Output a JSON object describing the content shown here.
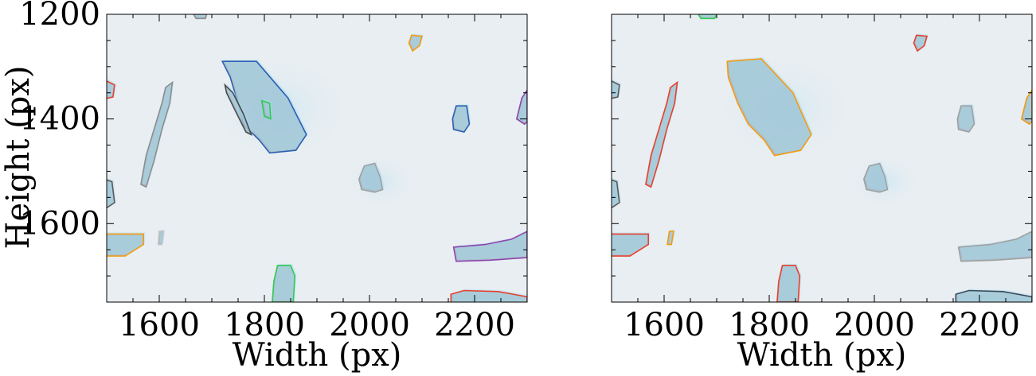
{
  "chart_data": [
    {
      "type": "image",
      "xlabel": "Width (px)",
      "ylabel": "Height (px)",
      "xlim": [
        1500,
        2300
      ],
      "ylim": [
        1750,
        1200
      ],
      "xticks": [
        1600,
        1800,
        2000,
        2200
      ],
      "yticks": [
        1200,
        1400,
        1600
      ],
      "background": "#e8eef2",
      "particles": [
        {
          "id": "p1",
          "outline": "#e8402c",
          "pts": [
            [
              1495,
              1325
            ],
            [
              1515,
              1335
            ],
            [
              1512,
              1358
            ],
            [
              1495,
              1362
            ]
          ]
        },
        {
          "id": "p2",
          "outline": "#8d8d8d",
          "pts": [
            [
              1625,
              1330
            ],
            [
              1620,
              1370
            ],
            [
              1605,
              1420
            ],
            [
              1590,
              1480
            ],
            [
              1575,
              1530
            ],
            [
              1565,
              1525
            ],
            [
              1575,
              1470
            ],
            [
              1590,
              1420
            ],
            [
              1605,
              1370
            ],
            [
              1612,
              1340
            ]
          ]
        },
        {
          "id": "p3",
          "outline": "#2b5fb2",
          "pts": [
            [
              1720,
              1290
            ],
            [
              1785,
              1290
            ],
            [
              1845,
              1360
            ],
            [
              1880,
              1430
            ],
            [
              1860,
              1460
            ],
            [
              1810,
              1465
            ],
            [
              1790,
              1440
            ],
            [
              1760,
              1410
            ],
            [
              1750,
              1370
            ],
            [
              1735,
              1320
            ]
          ]
        },
        {
          "id": "p4",
          "outline": "#2ecc52",
          "pts": [
            [
              1795,
              1365
            ],
            [
              1810,
              1370
            ],
            [
              1812,
              1400
            ],
            [
              1800,
              1395
            ]
          ]
        },
        {
          "id": "p5",
          "outline": "#4a4a4a",
          "pts": [
            [
              1725,
              1335
            ],
            [
              1740,
              1350
            ],
            [
              1760,
              1390
            ],
            [
              1775,
              1430
            ],
            [
              1765,
              1425
            ],
            [
              1745,
              1385
            ],
            [
              1728,
              1350
            ]
          ]
        },
        {
          "id": "p6",
          "outline": "#a0a0a0",
          "pts": [
            [
              1990,
              1490
            ],
            [
              2010,
              1485
            ],
            [
              2020,
              1510
            ],
            [
              2025,
              1535
            ],
            [
              2010,
              1540
            ],
            [
              1985,
              1535
            ],
            [
              1980,
              1515
            ]
          ]
        },
        {
          "id": "p7",
          "outline": "#2b5fb2",
          "pts": [
            [
              2165,
              1375
            ],
            [
              2185,
              1375
            ],
            [
              2190,
              1410
            ],
            [
              2180,
              1425
            ],
            [
              2160,
              1420
            ],
            [
              2158,
              1400
            ]
          ]
        },
        {
          "id": "p8",
          "outline": "#f39c12",
          "pts": [
            [
              2080,
              1240
            ],
            [
              2100,
              1242
            ],
            [
              2095,
              1260
            ],
            [
              2082,
              1270
            ],
            [
              2075,
              1255
            ]
          ]
        },
        {
          "id": "p9",
          "outline": "#8e44ad",
          "pts": [
            [
              2300,
              1345
            ],
            [
              2290,
              1360
            ],
            [
              2280,
              1400
            ],
            [
              2295,
              1410
            ],
            [
              2300,
              1405
            ]
          ]
        },
        {
          "id": "p10",
          "outline": "#f39c12",
          "pts": [
            [
              1495,
              1620
            ],
            [
              1570,
              1620
            ],
            [
              1570,
              1640
            ],
            [
              1535,
              1662
            ],
            [
              1495,
              1662
            ]
          ]
        },
        {
          "id": "p11",
          "outline": "#c0c0c0",
          "pts": [
            [
              1600,
              1615
            ],
            [
              1608,
              1615
            ],
            [
              1605,
              1640
            ],
            [
              1598,
              1640
            ]
          ]
        },
        {
          "id": "p12",
          "outline": "#5a5a5a",
          "pts": [
            [
              1495,
              1515
            ],
            [
              1510,
              1520
            ],
            [
              1515,
              1560
            ],
            [
              1500,
              1570
            ],
            [
              1495,
              1570
            ]
          ]
        },
        {
          "id": "p13",
          "outline": "#2ecc52",
          "pts": [
            [
              1825,
              1680
            ],
            [
              1850,
              1680
            ],
            [
              1858,
              1700
            ],
            [
              1855,
              1750
            ],
            [
              1815,
              1750
            ],
            [
              1818,
              1710
            ]
          ]
        },
        {
          "id": "p14",
          "outline": "#8e44ad",
          "pts": [
            [
              2160,
              1645
            ],
            [
              2220,
              1640
            ],
            [
              2270,
              1630
            ],
            [
              2300,
              1615
            ],
            [
              2300,
              1665
            ],
            [
              2230,
              1670
            ],
            [
              2165,
              1672
            ]
          ]
        },
        {
          "id": "p15",
          "outline": "#e8402c",
          "pts": [
            [
              2155,
              1735
            ],
            [
              2180,
              1728
            ],
            [
              2245,
              1730
            ],
            [
              2300,
              1740
            ],
            [
              2300,
              1760
            ],
            [
              2155,
              1760
            ]
          ]
        },
        {
          "id": "p16",
          "outline": "#8d8d8d",
          "pts": [
            [
              1665,
              1200
            ],
            [
              1690,
              1200
            ],
            [
              1688,
              1208
            ],
            [
              1670,
              1208
            ]
          ]
        }
      ]
    },
    {
      "type": "image",
      "xlabel": "Width (px)",
      "ylabel": "",
      "xlim": [
        1500,
        2300
      ],
      "ylim": [
        1750,
        1200
      ],
      "xticks": [
        1600,
        1800,
        2000,
        2200
      ],
      "yticks": [
        1200,
        1400,
        1600
      ],
      "background": "#e8eef2",
      "particles": [
        {
          "id": "q1",
          "outline": "#5a5a5a",
          "pts": [
            [
              1495,
              1325
            ],
            [
              1515,
              1335
            ],
            [
              1512,
              1358
            ],
            [
              1495,
              1362
            ]
          ]
        },
        {
          "id": "q2",
          "outline": "#e8402c",
          "pts": [
            [
              1625,
              1330
            ],
            [
              1620,
              1370
            ],
            [
              1605,
              1420
            ],
            [
              1590,
              1480
            ],
            [
              1575,
              1530
            ],
            [
              1565,
              1525
            ],
            [
              1575,
              1470
            ],
            [
              1590,
              1420
            ],
            [
              1605,
              1370
            ],
            [
              1612,
              1340
            ]
          ]
        },
        {
          "id": "q3",
          "outline": "#f39c12",
          "pts": [
            [
              1720,
              1290
            ],
            [
              1785,
              1285
            ],
            [
              1845,
              1350
            ],
            [
              1880,
              1430
            ],
            [
              1860,
              1460
            ],
            [
              1810,
              1470
            ],
            [
              1790,
              1440
            ],
            [
              1760,
              1410
            ],
            [
              1740,
              1370
            ],
            [
              1722,
              1320
            ]
          ]
        },
        {
          "id": "q4",
          "outline": "#a0a0a0",
          "pts": [
            [
              1990,
              1490
            ],
            [
              2010,
              1485
            ],
            [
              2020,
              1510
            ],
            [
              2025,
              1535
            ],
            [
              2010,
              1540
            ],
            [
              1985,
              1535
            ],
            [
              1980,
              1515
            ]
          ]
        },
        {
          "id": "q5",
          "outline": "#a0a0a0",
          "pts": [
            [
              2165,
              1375
            ],
            [
              2185,
              1375
            ],
            [
              2190,
              1410
            ],
            [
              2180,
              1425
            ],
            [
              2160,
              1420
            ],
            [
              2158,
              1400
            ]
          ]
        },
        {
          "id": "q6",
          "outline": "#e8402c",
          "pts": [
            [
              2080,
              1240
            ],
            [
              2100,
              1242
            ],
            [
              2095,
              1260
            ],
            [
              2082,
              1270
            ],
            [
              2075,
              1255
            ]
          ]
        },
        {
          "id": "q7",
          "outline": "#f39c12",
          "pts": [
            [
              2300,
              1345
            ],
            [
              2290,
              1360
            ],
            [
              2280,
              1400
            ],
            [
              2295,
              1410
            ],
            [
              2300,
              1405
            ]
          ]
        },
        {
          "id": "q8",
          "outline": "#e8402c",
          "pts": [
            [
              1495,
              1620
            ],
            [
              1570,
              1620
            ],
            [
              1570,
              1640
            ],
            [
              1535,
              1662
            ],
            [
              1495,
              1662
            ]
          ]
        },
        {
          "id": "q9",
          "outline": "#f39c12",
          "pts": [
            [
              1610,
              1615
            ],
            [
              1618,
              1615
            ],
            [
              1614,
              1640
            ],
            [
              1606,
              1640
            ]
          ]
        },
        {
          "id": "q10",
          "outline": "#5a5a5a",
          "pts": [
            [
              1495,
              1515
            ],
            [
              1510,
              1520
            ],
            [
              1515,
              1560
            ],
            [
              1500,
              1570
            ],
            [
              1495,
              1570
            ]
          ]
        },
        {
          "id": "q11",
          "outline": "#e8402c",
          "pts": [
            [
              1825,
              1680
            ],
            [
              1850,
              1680
            ],
            [
              1858,
              1700
            ],
            [
              1855,
              1750
            ],
            [
              1815,
              1750
            ],
            [
              1818,
              1710
            ]
          ]
        },
        {
          "id": "q12",
          "outline": "#a0a0a0",
          "pts": [
            [
              2160,
              1645
            ],
            [
              2220,
              1640
            ],
            [
              2270,
              1630
            ],
            [
              2300,
              1615
            ],
            [
              2300,
              1665
            ],
            [
              2230,
              1670
            ],
            [
              2165,
              1672
            ]
          ]
        },
        {
          "id": "q13",
          "outline": "#3a4a5a",
          "pts": [
            [
              2155,
              1735
            ],
            [
              2180,
              1728
            ],
            [
              2245,
              1730
            ],
            [
              2300,
              1740
            ],
            [
              2300,
              1760
            ],
            [
              2155,
              1760
            ]
          ]
        },
        {
          "id": "q14",
          "outline": "#2ecc52",
          "pts": [
            [
              1665,
              1200
            ],
            [
              1700,
              1200
            ],
            [
              1696,
              1208
            ],
            [
              1670,
              1208
            ]
          ]
        }
      ]
    }
  ]
}
